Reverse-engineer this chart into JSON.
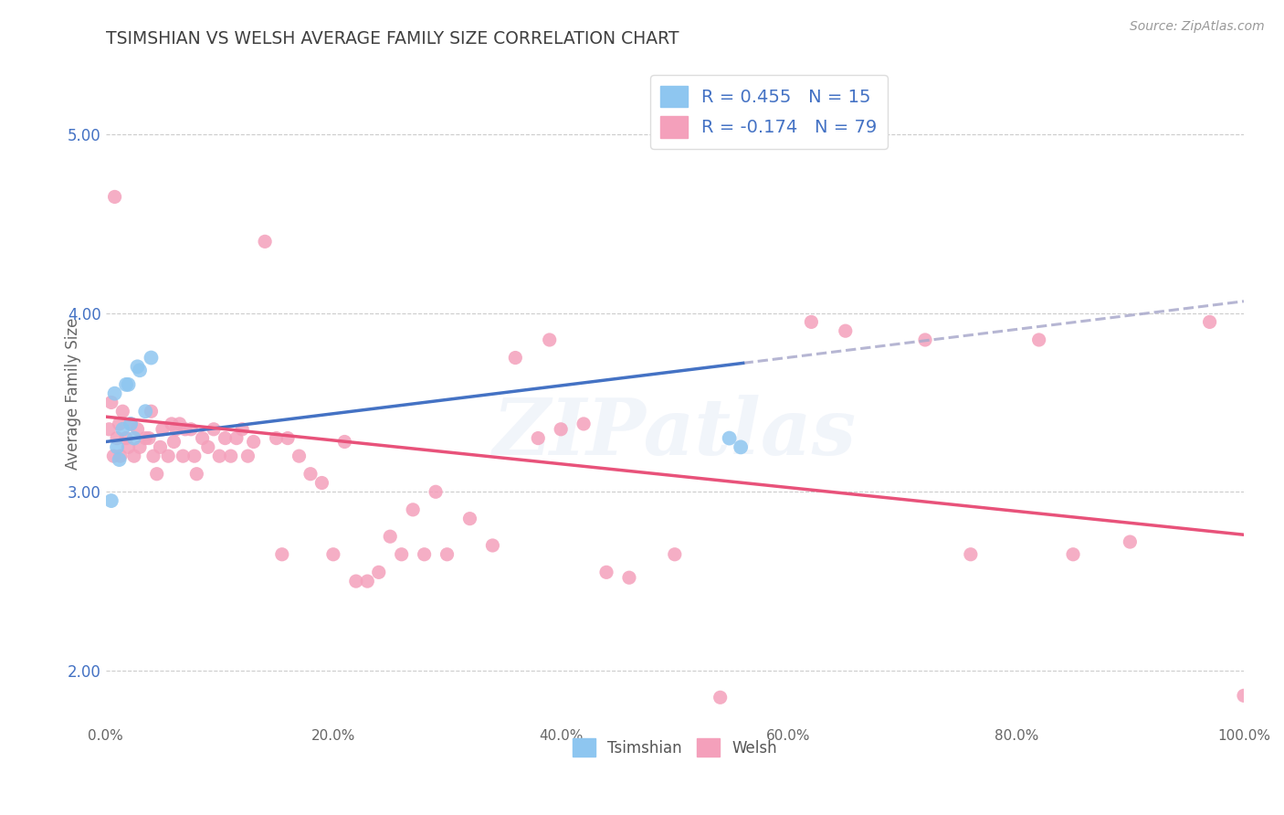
{
  "title": "TSIMSHIAN VS WELSH AVERAGE FAMILY SIZE CORRELATION CHART",
  "source": "Source: ZipAtlas.com",
  "ylabel": "Average Family Size",
  "xlim": [
    0.0,
    1.0
  ],
  "ylim": [
    1.7,
    5.4
  ],
  "yticks": [
    2.0,
    3.0,
    4.0,
    5.0
  ],
  "xticks": [
    0.0,
    0.2,
    0.4,
    0.6,
    0.8,
    1.0
  ],
  "xtick_labels": [
    "0.0%",
    "20.0%",
    "40.0%",
    "60.0%",
    "80.0%",
    "100.0%"
  ],
  "tsimshian_color": "#8EC6F0",
  "tsimshian_line_color": "#4472C4",
  "welsh_color": "#F4A0BB",
  "welsh_line_color": "#E8527A",
  "dashed_color": "#AAAACC",
  "tsimshian_R": 0.455,
  "tsimshian_N": 15,
  "welsh_R": -0.174,
  "welsh_N": 79,
  "legend_text_color": "#4472C4",
  "title_color": "#404040",
  "watermark": "ZIPatlas",
  "tsimshian_points_x": [
    0.005,
    0.008,
    0.01,
    0.012,
    0.015,
    0.018,
    0.02,
    0.022,
    0.025,
    0.028,
    0.03,
    0.035,
    0.04,
    0.548,
    0.558
  ],
  "tsimshian_points_y": [
    2.95,
    3.55,
    3.25,
    3.18,
    3.35,
    3.6,
    3.6,
    3.38,
    3.3,
    3.7,
    3.68,
    3.45,
    3.75,
    3.3,
    3.25
  ],
  "welsh_points_x": [
    0.003,
    0.005,
    0.007,
    0.008,
    0.01,
    0.012,
    0.013,
    0.015,
    0.018,
    0.02,
    0.022,
    0.025,
    0.028,
    0.03,
    0.035,
    0.038,
    0.04,
    0.042,
    0.045,
    0.048,
    0.05,
    0.055,
    0.058,
    0.06,
    0.062,
    0.065,
    0.068,
    0.07,
    0.075,
    0.078,
    0.08,
    0.085,
    0.09,
    0.095,
    0.1,
    0.105,
    0.11,
    0.115,
    0.12,
    0.125,
    0.13,
    0.14,
    0.15,
    0.155,
    0.16,
    0.17,
    0.18,
    0.19,
    0.2,
    0.21,
    0.22,
    0.23,
    0.24,
    0.25,
    0.26,
    0.27,
    0.28,
    0.29,
    0.3,
    0.32,
    0.34,
    0.36,
    0.38,
    0.39,
    0.4,
    0.42,
    0.44,
    0.46,
    0.5,
    0.54,
    0.62,
    0.65,
    0.72,
    0.76,
    0.82,
    0.85,
    0.9,
    0.97,
    1.0
  ],
  "welsh_points_y": [
    3.35,
    3.5,
    3.2,
    4.65,
    3.3,
    3.38,
    3.2,
    3.45,
    3.3,
    3.25,
    3.38,
    3.2,
    3.35,
    3.25,
    3.3,
    3.3,
    3.45,
    3.2,
    3.1,
    3.25,
    3.35,
    3.2,
    3.38,
    3.28,
    3.35,
    3.38,
    3.2,
    3.35,
    3.35,
    3.2,
    3.1,
    3.3,
    3.25,
    3.35,
    3.2,
    3.3,
    3.2,
    3.3,
    3.35,
    3.2,
    3.28,
    4.4,
    3.3,
    2.65,
    3.3,
    3.2,
    3.1,
    3.05,
    2.65,
    3.28,
    2.5,
    2.5,
    2.55,
    2.75,
    2.65,
    2.9,
    2.65,
    3.0,
    2.65,
    2.85,
    2.7,
    3.75,
    3.3,
    3.85,
    3.35,
    3.38,
    2.55,
    2.52,
    2.65,
    1.85,
    3.95,
    3.9,
    3.85,
    2.65,
    3.85,
    2.65,
    2.72,
    3.95,
    1.86
  ]
}
